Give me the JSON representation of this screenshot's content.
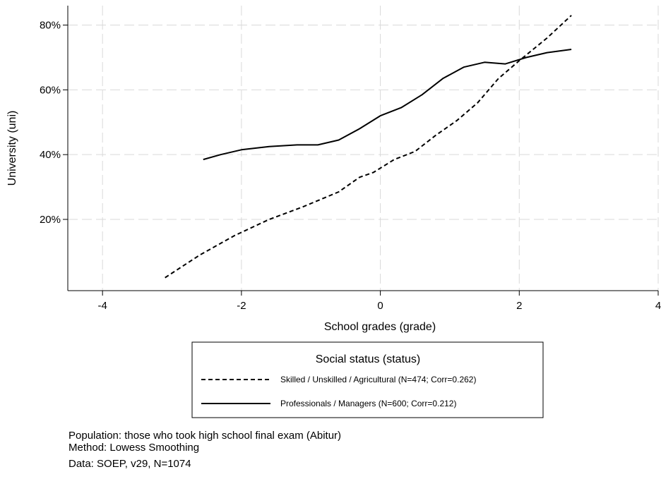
{
  "chart_data": {
    "type": "line",
    "xlabel": "School grades (grade)",
    "ylabel": "University (uni)",
    "xlim": [
      -4.5,
      4
    ],
    "ylim": [
      -0.02,
      0.86
    ],
    "x_ticks": [
      -4,
      -2,
      0,
      2,
      4
    ],
    "x_tick_labels": [
      "-4",
      "-2",
      "0",
      "2",
      "4"
    ],
    "y_ticks": [
      0.2,
      0.4,
      0.6,
      0.8
    ],
    "y_tick_labels": [
      "20%",
      "40%",
      "60%",
      "80%"
    ],
    "grid": true,
    "legend": {
      "title": "Social status (status)",
      "placement": "bottom"
    },
    "series": [
      {
        "name": "Skilled / Unskilled / Agricultural (N=474; Corr=0.262)",
        "style": "dashed",
        "color": "#000000",
        "points": [
          [
            -3.1,
            0.02
          ],
          [
            -2.6,
            0.09
          ],
          [
            -2.1,
            0.15
          ],
          [
            -1.6,
            0.2
          ],
          [
            -1.1,
            0.24
          ],
          [
            -0.6,
            0.285
          ],
          [
            -0.3,
            0.33
          ],
          [
            -0.1,
            0.345
          ],
          [
            0.2,
            0.385
          ],
          [
            0.5,
            0.41
          ],
          [
            0.8,
            0.46
          ],
          [
            1.1,
            0.505
          ],
          [
            1.4,
            0.56
          ],
          [
            1.7,
            0.635
          ],
          [
            2.0,
            0.69
          ],
          [
            2.4,
            0.76
          ],
          [
            2.75,
            0.83
          ]
        ]
      },
      {
        "name": "Professionals / Managers (N=600; Corr=0.212)",
        "style": "solid",
        "color": "#000000",
        "points": [
          [
            -2.55,
            0.385
          ],
          [
            -2.3,
            0.4
          ],
          [
            -2.0,
            0.415
          ],
          [
            -1.6,
            0.425
          ],
          [
            -1.2,
            0.43
          ],
          [
            -0.9,
            0.43
          ],
          [
            -0.6,
            0.445
          ],
          [
            -0.3,
            0.48
          ],
          [
            0.0,
            0.52
          ],
          [
            0.3,
            0.545
          ],
          [
            0.6,
            0.585
          ],
          [
            0.9,
            0.635
          ],
          [
            1.2,
            0.67
          ],
          [
            1.5,
            0.685
          ],
          [
            1.8,
            0.68
          ],
          [
            2.1,
            0.7
          ],
          [
            2.4,
            0.715
          ],
          [
            2.75,
            0.725
          ]
        ]
      }
    ]
  },
  "notes": {
    "population": "Population: those who took high school final exam (Abitur)",
    "method": "Method: Lowess Smoothing",
    "data": "Data: SOEP, v29, N=1074"
  }
}
